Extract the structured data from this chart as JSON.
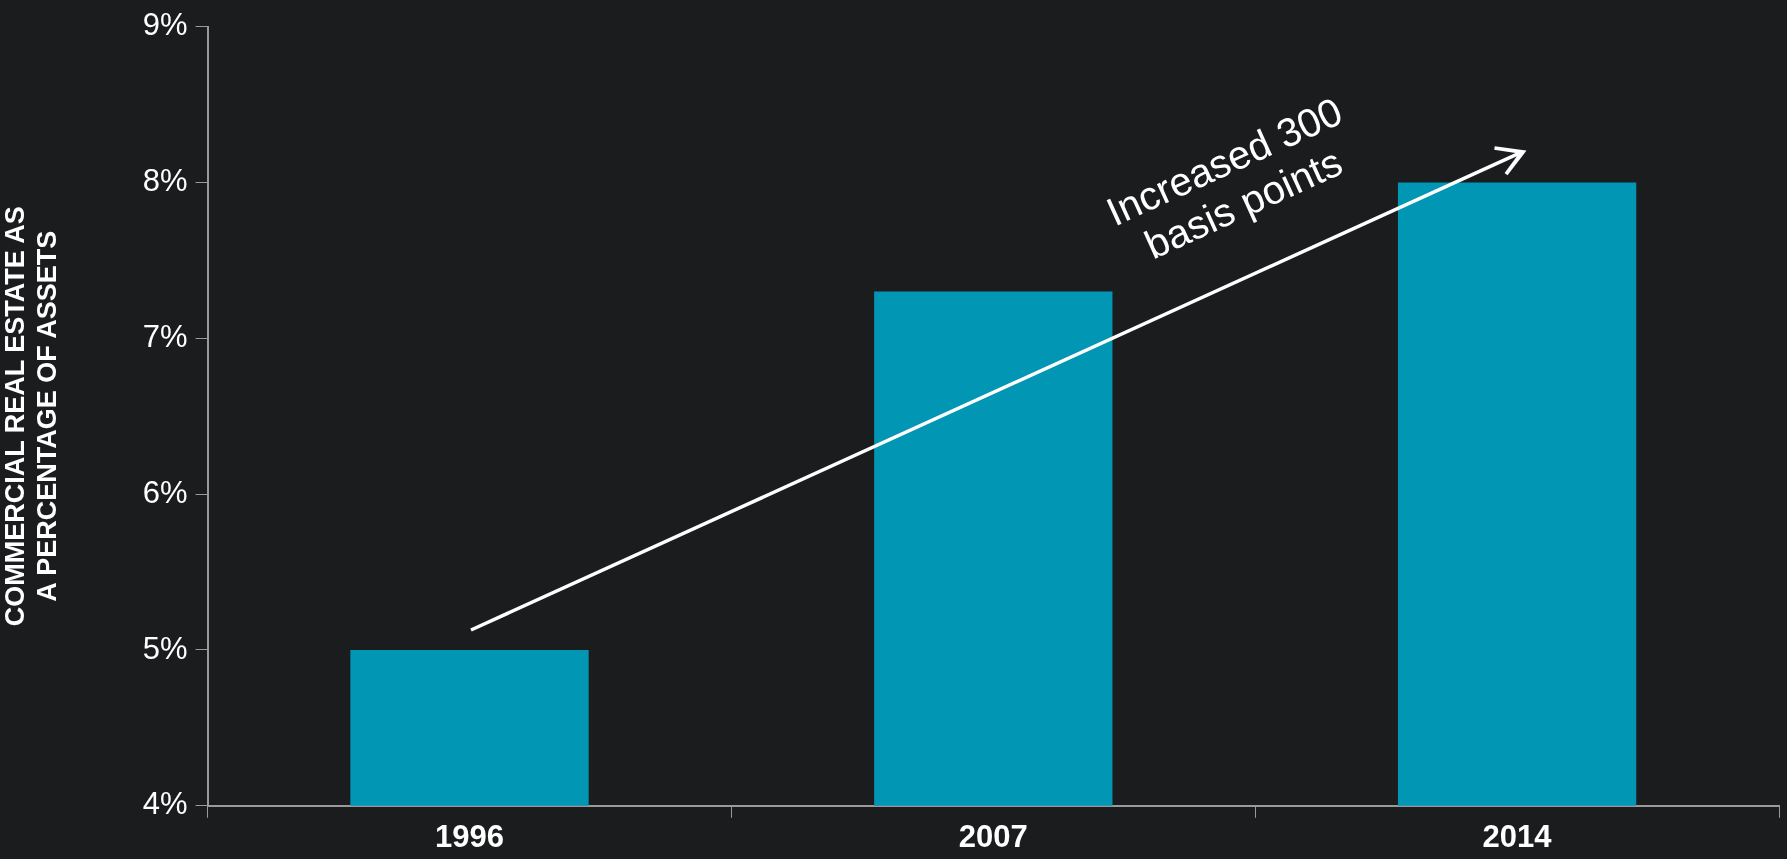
{
  "chart_data": {
    "type": "bar",
    "ylabel": [
      "COMMERCIAL REAL ESTATE AS",
      "A PERCENTAGE OF ASSETS"
    ],
    "categories": [
      "1996",
      "2007",
      "2014"
    ],
    "values": [
      5.0,
      7.3,
      8.0
    ],
    "color": "#0096b4",
    "ylim": [
      4,
      9
    ],
    "yticks": [
      {
        "value": 4,
        "label": "4%"
      },
      {
        "value": 5,
        "label": "5%"
      },
      {
        "value": 6,
        "label": "6%"
      },
      {
        "value": 7,
        "label": "7%"
      },
      {
        "value": 8,
        "label": "8%"
      },
      {
        "value": 9,
        "label": "9%"
      }
    ],
    "grid": false,
    "legend": false,
    "annotations": [
      "Increased 300\nbasis points"
    ]
  }
}
